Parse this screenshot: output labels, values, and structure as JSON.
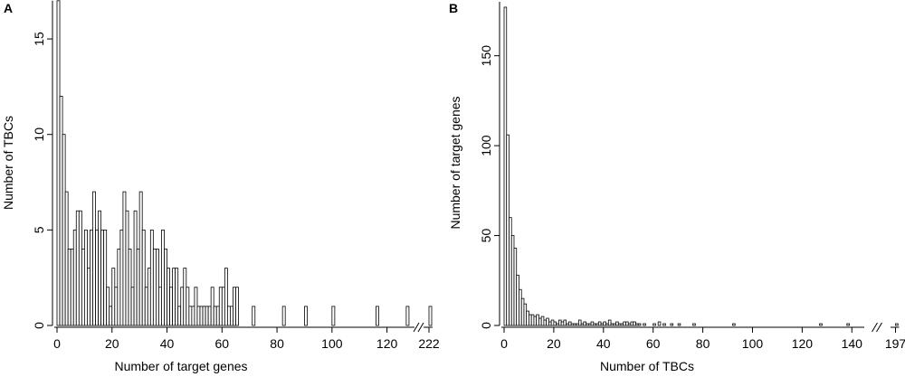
{
  "chart_data": [
    {
      "type": "bar",
      "panel": "A",
      "xlabel": "Number of target genes",
      "ylabel": "Number of TBCs",
      "x": [
        0,
        1,
        2,
        3,
        4,
        5,
        6,
        7,
        8,
        9,
        10,
        11,
        12,
        13,
        14,
        15,
        16,
        17,
        18,
        19,
        20,
        21,
        22,
        23,
        24,
        25,
        26,
        27,
        28,
        29,
        30,
        31,
        32,
        33,
        34,
        35,
        36,
        37,
        38,
        39,
        40,
        41,
        42,
        43,
        44,
        45,
        46,
        47,
        48,
        49,
        50,
        51,
        52,
        53,
        54,
        55,
        56,
        57,
        58,
        59,
        60,
        61,
        62,
        63,
        64,
        65,
        71,
        82,
        90,
        100,
        116,
        127,
        222
      ],
      "values": [
        17,
        12,
        10,
        7,
        4,
        4,
        5,
        6,
        6,
        4,
        5,
        3,
        5,
        7,
        5,
        6,
        5,
        5,
        2,
        1,
        3,
        2,
        4,
        5,
        7,
        6,
        4,
        2,
        6,
        4,
        7,
        5,
        2,
        3,
        5,
        4,
        4,
        2,
        5,
        4,
        3,
        2,
        3,
        3,
        1,
        2,
        3,
        2,
        1,
        1,
        2,
        1,
        1,
        1,
        1,
        1,
        2,
        1,
        1,
        2,
        2,
        3,
        1,
        1,
        2,
        2,
        1,
        1,
        1,
        1,
        1,
        1,
        1
      ],
      "color": "#ffffff",
      "xlim": [
        0,
        222
      ],
      "xbreak": [
        130,
        220
      ],
      "xticks": [
        0,
        20,
        40,
        60,
        80,
        100,
        120,
        222
      ],
      "ylim": [
        0,
        17
      ],
      "yticks": [
        0,
        5,
        10,
        15
      ]
    },
    {
      "type": "bar",
      "panel": "B",
      "xlabel": "Number of TBCs",
      "ylabel": "Number of target genes",
      "x": [
        0,
        1,
        2,
        3,
        4,
        5,
        6,
        7,
        8,
        9,
        10,
        11,
        12,
        13,
        14,
        15,
        16,
        17,
        18,
        19,
        20,
        21,
        22,
        23,
        24,
        25,
        26,
        27,
        28,
        29,
        30,
        31,
        32,
        33,
        34,
        35,
        36,
        37,
        38,
        39,
        40,
        41,
        42,
        43,
        44,
        45,
        46,
        47,
        48,
        49,
        50,
        51,
        52,
        53,
        54,
        56,
        60,
        62,
        64,
        67,
        70,
        76,
        92,
        127,
        138,
        197
      ],
      "values": [
        177,
        106,
        60,
        50,
        43,
        28,
        20,
        15,
        12,
        8,
        6,
        6,
        5,
        6,
        4,
        5,
        3,
        4,
        2,
        3,
        2,
        1,
        3,
        2,
        3,
        1,
        2,
        1,
        1,
        1,
        3,
        1,
        2,
        1,
        1,
        2,
        1,
        1,
        2,
        1,
        2,
        1,
        3,
        1,
        1,
        2,
        1,
        1,
        2,
        2,
        1,
        2,
        2,
        1,
        1,
        1,
        1,
        2,
        1,
        1,
        1,
        1,
        1,
        1,
        1,
        1
      ],
      "color": "#ffffff",
      "xlim": [
        0,
        197
      ],
      "xbreak": [
        145,
        195
      ],
      "xticks": [
        0,
        20,
        40,
        60,
        80,
        100,
        120,
        140,
        197
      ],
      "ylim": [
        0,
        180
      ],
      "yticks": [
        0,
        50,
        100,
        150
      ]
    }
  ]
}
